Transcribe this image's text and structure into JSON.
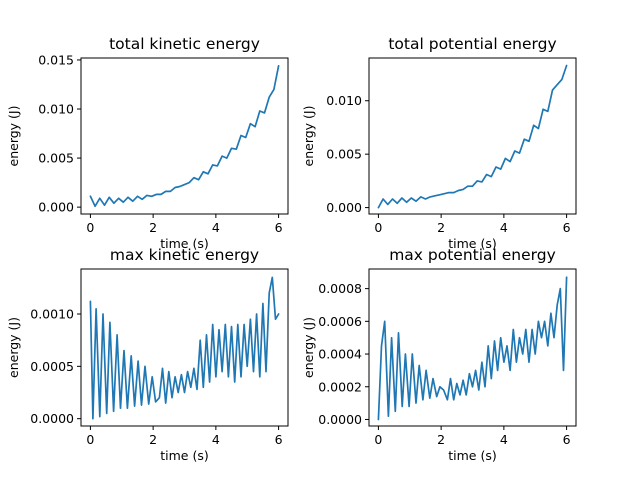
{
  "figure": {
    "line_color": "#1f77b4"
  },
  "chart_data": [
    {
      "type": "line",
      "title": "total kinetic energy",
      "xlabel": "time (s)",
      "ylabel": "energy (J)",
      "xlim": [
        -0.3,
        6.3
      ],
      "ylim": [
        -0.0007,
        0.0152
      ],
      "xticks": [
        0,
        2,
        4,
        6
      ],
      "xticklabels": [
        "0",
        "2",
        "4",
        "6"
      ],
      "yticks": [
        0,
        0.005,
        0.01,
        0.015
      ],
      "yticklabels": [
        "0.000",
        "0.005",
        "0.010",
        "0.015"
      ],
      "x": [
        0,
        0.15,
        0.3,
        0.45,
        0.6,
        0.75,
        0.9,
        1.05,
        1.2,
        1.35,
        1.5,
        1.65,
        1.8,
        1.95,
        2.1,
        2.25,
        2.4,
        2.55,
        2.7,
        2.85,
        3.0,
        3.15,
        3.3,
        3.45,
        3.6,
        3.75,
        3.9,
        4.05,
        4.2,
        4.35,
        4.5,
        4.65,
        4.8,
        4.95,
        5.1,
        5.25,
        5.4,
        5.55,
        5.7,
        5.85,
        6.0
      ],
      "y": [
        0.0011,
        0.0001,
        0.0009,
        0.0002,
        0.001,
        0.0004,
        0.0009,
        0.0005,
        0.001,
        0.0006,
        0.0011,
        0.0008,
        0.0012,
        0.0011,
        0.0013,
        0.0013,
        0.0016,
        0.0016,
        0.002,
        0.0021,
        0.0023,
        0.0025,
        0.003,
        0.0028,
        0.0036,
        0.0034,
        0.0043,
        0.0042,
        0.0052,
        0.005,
        0.006,
        0.0059,
        0.0073,
        0.0071,
        0.0085,
        0.0082,
        0.0098,
        0.0096,
        0.0112,
        0.012,
        0.0144
      ]
    },
    {
      "type": "line",
      "title": "total potential energy",
      "xlabel": "time (s)",
      "ylabel": "energy (J)",
      "xlim": [
        -0.3,
        6.3
      ],
      "ylim": [
        -0.0006,
        0.014
      ],
      "xticks": [
        0,
        2,
        4,
        6
      ],
      "xticklabels": [
        "0",
        "2",
        "4",
        "6"
      ],
      "yticks": [
        0,
        0.005,
        0.01
      ],
      "yticklabels": [
        "0.000",
        "0.005",
        "0.010"
      ],
      "x": [
        0,
        0.15,
        0.3,
        0.45,
        0.6,
        0.75,
        0.9,
        1.05,
        1.2,
        1.35,
        1.5,
        1.65,
        1.8,
        1.95,
        2.1,
        2.25,
        2.4,
        2.55,
        2.7,
        2.85,
        3.0,
        3.15,
        3.3,
        3.45,
        3.6,
        3.75,
        3.9,
        4.05,
        4.2,
        4.35,
        4.5,
        4.65,
        4.8,
        4.95,
        5.1,
        5.25,
        5.4,
        5.55,
        5.7,
        5.85,
        6.0
      ],
      "y": [
        0.0,
        0.0008,
        0.0003,
        0.0008,
        0.0004,
        0.0009,
        0.0005,
        0.0009,
        0.0006,
        0.001,
        0.0008,
        0.001,
        0.0011,
        0.0012,
        0.0013,
        0.0014,
        0.0014,
        0.0016,
        0.0017,
        0.002,
        0.002,
        0.0025,
        0.0024,
        0.0031,
        0.0029,
        0.0038,
        0.0036,
        0.0046,
        0.0043,
        0.0053,
        0.0051,
        0.0064,
        0.0062,
        0.0077,
        0.0074,
        0.0092,
        0.009,
        0.011,
        0.0115,
        0.012,
        0.0133
      ]
    },
    {
      "type": "line",
      "title": "max kinetic energy",
      "xlabel": "time (s)",
      "ylabel": "energy (J)",
      "xlim": [
        -0.3,
        6.3
      ],
      "ylim": [
        -7e-05,
        0.00143
      ],
      "xticks": [
        0,
        2,
        4,
        6
      ],
      "xticklabels": [
        "0",
        "2",
        "4",
        "6"
      ],
      "yticks": [
        0,
        0.0005,
        0.001
      ],
      "yticklabels": [
        "0.0000",
        "0.0005",
        "0.0010"
      ],
      "x": [
        0,
        0.08,
        0.18,
        0.3,
        0.4,
        0.52,
        0.62,
        0.74,
        0.85,
        0.96,
        1.07,
        1.18,
        1.3,
        1.41,
        1.52,
        1.63,
        1.74,
        1.86,
        1.97,
        2.08,
        2.2,
        2.3,
        2.4,
        2.5,
        2.6,
        2.7,
        2.8,
        2.9,
        3.0,
        3.1,
        3.2,
        3.3,
        3.4,
        3.5,
        3.6,
        3.7,
        3.8,
        3.9,
        4.0,
        4.1,
        4.2,
        4.3,
        4.4,
        4.5,
        4.6,
        4.7,
        4.8,
        4.9,
        5.0,
        5.1,
        5.2,
        5.3,
        5.4,
        5.5,
        5.6,
        5.7,
        5.8,
        5.9,
        6.0
      ],
      "y": [
        0.00112,
        0.0,
        0.00105,
        2e-05,
        0.001,
        5e-05,
        0.00092,
        7e-05,
        0.0008,
        0.0001,
        0.00065,
        0.0001,
        0.0006,
        0.00012,
        0.00055,
        0.00013,
        0.0005,
        0.00014,
        0.0004,
        0.00016,
        0.0002,
        0.00048,
        0.00015,
        0.00045,
        0.0002,
        0.0004,
        0.00025,
        0.00042,
        0.00025,
        0.00045,
        0.0003,
        0.00048,
        0.00028,
        0.00075,
        0.0003,
        0.0008,
        0.00035,
        0.0009,
        0.0004,
        0.00085,
        0.00045,
        0.0009,
        0.0004,
        0.00088,
        0.00035,
        0.0009,
        0.0004,
        0.0009,
        0.0005,
        0.00095,
        0.00045,
        0.001,
        0.0004,
        0.0011,
        0.00045,
        0.0012,
        0.00135,
        0.00095,
        0.001
      ]
    },
    {
      "type": "line",
      "title": "max potential energy",
      "xlabel": "time (s)",
      "ylabel": "energy (J)",
      "xlim": [
        -0.3,
        6.3
      ],
      "ylim": [
        -4e-05,
        0.00092
      ],
      "xticks": [
        0,
        2,
        4,
        6
      ],
      "xticklabels": [
        "0",
        "2",
        "4",
        "6"
      ],
      "yticks": [
        0,
        0.0002,
        0.0004,
        0.0006,
        0.0008
      ],
      "yticklabels": [
        "0.0000",
        "0.0002",
        "0.0004",
        "0.0006",
        "0.0008"
      ],
      "x": [
        0,
        0.1,
        0.2,
        0.32,
        0.42,
        0.54,
        0.64,
        0.76,
        0.86,
        0.98,
        1.08,
        1.2,
        1.3,
        1.42,
        1.52,
        1.64,
        1.74,
        1.86,
        1.96,
        2.08,
        2.2,
        2.3,
        2.4,
        2.5,
        2.6,
        2.7,
        2.8,
        2.9,
        3.0,
        3.1,
        3.2,
        3.3,
        3.4,
        3.5,
        3.6,
        3.7,
        3.8,
        3.9,
        4.0,
        4.1,
        4.2,
        4.3,
        4.4,
        4.5,
        4.6,
        4.7,
        4.8,
        4.9,
        5.0,
        5.1,
        5.2,
        5.3,
        5.4,
        5.5,
        5.6,
        5.7,
        5.8,
        5.9,
        6.0
      ],
      "y": [
        0.0,
        0.00045,
        0.0006,
        2e-05,
        0.0005,
        5e-05,
        0.00053,
        8e-05,
        0.0004,
        8e-05,
        0.0004,
        0.0001,
        0.00033,
        0.00012,
        0.0003,
        0.00013,
        0.00025,
        0.00014,
        0.0002,
        0.00018,
        0.00012,
        0.00025,
        0.00012,
        0.00022,
        0.00015,
        0.00024,
        0.00015,
        0.00028,
        0.0002,
        0.0003,
        0.00018,
        0.00035,
        0.0002,
        0.00045,
        0.00025,
        0.00048,
        0.0003,
        0.0005,
        0.00035,
        0.00045,
        0.0003,
        0.00055,
        0.00035,
        0.0005,
        0.0004,
        0.00055,
        0.00035,
        0.00055,
        0.0004,
        0.0006,
        0.0005,
        0.0006,
        0.00045,
        0.00065,
        0.0005,
        0.0007,
        0.0008,
        0.0003,
        0.00087
      ]
    }
  ]
}
